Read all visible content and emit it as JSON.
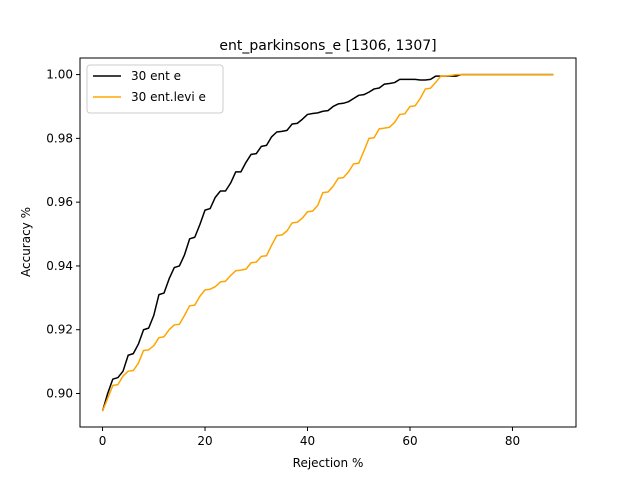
{
  "chart_data": {
    "type": "line",
    "title": "ent_parkinsons_e  [1306, 1307]",
    "xlabel": "Rejection %",
    "ylabel": "Accuracy %",
    "xlim": [
      -4.4,
      92.4
    ],
    "ylim": [
      0.8895,
      1.0052
    ],
    "xticks": [
      0,
      20,
      40,
      60,
      80
    ],
    "xtick_labels": [
      "0",
      "20",
      "40",
      "60",
      "80"
    ],
    "yticks": [
      0.9,
      0.92,
      0.94,
      0.96,
      0.98,
      1.0
    ],
    "ytick_labels": [
      "0.90",
      "0.92",
      "0.94",
      "0.96",
      "0.98",
      "1.00"
    ],
    "grid": false,
    "legend_position": "upper-left",
    "series": [
      {
        "name": "30 ent e",
        "color": "#000000",
        "x": [
          0,
          1,
          2,
          3,
          4,
          5,
          6,
          7,
          8,
          9,
          10,
          11,
          12,
          13,
          14,
          15,
          16,
          17,
          18,
          19,
          20,
          21,
          22,
          23,
          24,
          25,
          26,
          27,
          28,
          29,
          30,
          31,
          32,
          33,
          34,
          35,
          36,
          37,
          38,
          39,
          40,
          41,
          42,
          43,
          44,
          45,
          46,
          47,
          48,
          49,
          50,
          51,
          52,
          53,
          54,
          55,
          56,
          57,
          58,
          59,
          60,
          61,
          62,
          63,
          64,
          65,
          66,
          67,
          68,
          69,
          70,
          71,
          72,
          73,
          74,
          75,
          76,
          77,
          78,
          79,
          80,
          81,
          82,
          83,
          84,
          85,
          86,
          87,
          88
        ],
        "y": [
          0.8945,
          0.9,
          0.9045,
          0.905,
          0.907,
          0.912,
          0.9125,
          0.9155,
          0.92,
          0.9205,
          0.9245,
          0.931,
          0.9315,
          0.936,
          0.9395,
          0.94,
          0.9435,
          0.9485,
          0.949,
          0.953,
          0.9575,
          0.958,
          0.9615,
          0.9635,
          0.9635,
          0.966,
          0.9695,
          0.9695,
          0.9725,
          0.975,
          0.9752,
          0.9775,
          0.9778,
          0.9805,
          0.982,
          0.9822,
          0.9825,
          0.9845,
          0.9847,
          0.986,
          0.9875,
          0.9878,
          0.988,
          0.9885,
          0.9887,
          0.99,
          0.9908,
          0.991,
          0.9915,
          0.9925,
          0.9935,
          0.9937,
          0.9945,
          0.9955,
          0.9958,
          0.997,
          0.9972,
          0.9975,
          0.9985,
          0.9985,
          0.9985,
          0.9985,
          0.9983,
          0.9983,
          0.9985,
          0.9995,
          0.9995,
          0.9995,
          0.9995,
          0.9995,
          1.0,
          1.0,
          1.0,
          1.0,
          1.0,
          1.0,
          1.0,
          1.0,
          1.0,
          1.0,
          1.0,
          1.0,
          1.0,
          1.0,
          1.0,
          1.0,
          1.0,
          1.0,
          1.0
        ]
      },
      {
        "name": "30 ent.levi e",
        "color": "#ffa500",
        "x": [
          0,
          1,
          2,
          3,
          4,
          5,
          6,
          7,
          8,
          9,
          10,
          11,
          12,
          13,
          14,
          15,
          16,
          17,
          18,
          19,
          20,
          21,
          22,
          23,
          24,
          25,
          26,
          27,
          28,
          29,
          30,
          31,
          32,
          33,
          34,
          35,
          36,
          37,
          38,
          39,
          40,
          41,
          42,
          43,
          44,
          45,
          46,
          47,
          48,
          49,
          50,
          51,
          52,
          53,
          54,
          55,
          56,
          57,
          58,
          59,
          60,
          61,
          62,
          63,
          64,
          65,
          66,
          67,
          68,
          69,
          70,
          71,
          72,
          73,
          74,
          75,
          76,
          77,
          78,
          79,
          80,
          81,
          82,
          83,
          84,
          85,
          86,
          87,
          88
        ],
        "y": [
          0.8945,
          0.8985,
          0.9025,
          0.9028,
          0.9055,
          0.907,
          0.9072,
          0.9095,
          0.9135,
          0.9137,
          0.915,
          0.9175,
          0.9178,
          0.92,
          0.9215,
          0.9217,
          0.9245,
          0.9275,
          0.9277,
          0.9305,
          0.9325,
          0.9327,
          0.9335,
          0.935,
          0.9352,
          0.937,
          0.9385,
          0.9387,
          0.939,
          0.941,
          0.9412,
          0.943,
          0.9432,
          0.9465,
          0.9495,
          0.9497,
          0.951,
          0.9535,
          0.9537,
          0.955,
          0.957,
          0.9572,
          0.959,
          0.963,
          0.9632,
          0.965,
          0.9675,
          0.9677,
          0.9695,
          0.972,
          0.9722,
          0.976,
          0.98,
          0.9802,
          0.983,
          0.9832,
          0.9835,
          0.985,
          0.9875,
          0.9877,
          0.99,
          0.9902,
          0.9925,
          0.9955,
          0.9957,
          0.9975,
          0.9995,
          0.9995,
          0.9997,
          1.0,
          1.0,
          1.0,
          1.0,
          1.0,
          1.0,
          1.0,
          1.0,
          1.0,
          1.0,
          1.0,
          1.0,
          1.0,
          1.0,
          1.0,
          1.0,
          1.0,
          1.0,
          1.0,
          1.0
        ]
      }
    ]
  }
}
